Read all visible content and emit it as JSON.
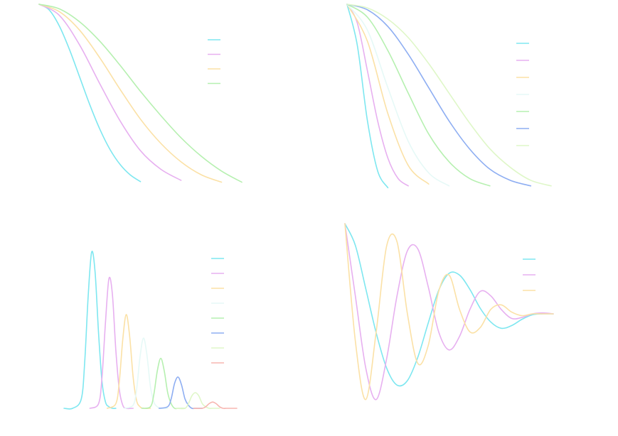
{
  "chart_data": [
    {
      "type": "line",
      "panel": "top-left",
      "grid": false,
      "legend": "top-right",
      "xlim": [
        0,
        10
      ],
      "ylim": [
        0,
        1
      ],
      "series": [
        {
          "color": "#7ee7f0",
          "x": [
            0.0,
            0.5,
            1.0,
            1.5,
            2.0,
            2.5,
            3.0,
            3.5,
            4.0,
            4.5,
            5.0
          ],
          "y": [
            1.0,
            0.969,
            0.882,
            0.755,
            0.607,
            0.458,
            0.325,
            0.216,
            0.135,
            0.079,
            0.043
          ]
        },
        {
          "color": "#e7b0f0",
          "x": [
            0.0,
            1.0,
            2.0,
            3.0,
            4.0,
            5.0,
            6.0,
            7.0
          ],
          "y": [
            1.0,
            0.94,
            0.78,
            0.57,
            0.37,
            0.21,
            0.11,
            0.05
          ]
        },
        {
          "color": "#fbe1a6",
          "x": [
            0.0,
            1.0,
            2.0,
            3.0,
            4.0,
            5.0,
            6.0,
            7.0,
            8.0,
            9.0
          ],
          "y": [
            1.0,
            0.96,
            0.86,
            0.71,
            0.54,
            0.38,
            0.25,
            0.15,
            0.08,
            0.04
          ]
        },
        {
          "color": "#b6f0b0",
          "x": [
            0.0,
            1.0,
            2.0,
            3.0,
            4.0,
            5.0,
            6.0,
            7.0,
            8.0,
            9.0,
            10.0
          ],
          "y": [
            1.0,
            0.975,
            0.905,
            0.8,
            0.67,
            0.53,
            0.4,
            0.28,
            0.18,
            0.1,
            0.04
          ]
        }
      ]
    },
    {
      "type": "line",
      "panel": "top-right",
      "grid": false,
      "legend": "top-right",
      "xlim": [
        0,
        10
      ],
      "ylim": [
        0,
        1
      ],
      "series": [
        {
          "color": "#7ee7f0",
          "x": [
            0.0,
            0.5,
            1.0,
            1.5,
            2.0
          ],
          "y": [
            1.0,
            0.78,
            0.37,
            0.1,
            0.01
          ]
        },
        {
          "color": "#e7b0f0",
          "x": [
            0.0,
            0.5,
            1.0,
            1.5,
            2.0,
            2.5,
            3.0
          ],
          "y": [
            1.0,
            0.9,
            0.64,
            0.37,
            0.17,
            0.06,
            0.02
          ]
        },
        {
          "color": "#fbe1a6",
          "x": [
            0.0,
            1.0,
            2.0,
            3.0,
            4.0
          ],
          "y": [
            1.0,
            0.8,
            0.41,
            0.13,
            0.03
          ]
        },
        {
          "color": "#e6f9f7",
          "x": [
            0.0,
            1.0,
            2.0,
            3.0,
            4.0,
            5.0
          ],
          "y": [
            1.0,
            0.86,
            0.55,
            0.26,
            0.09,
            0.02
          ]
        },
        {
          "color": "#b6f0b0",
          "x": [
            0.0,
            1.0,
            2.0,
            3.0,
            4.0,
            5.0,
            6.0,
            7.0
          ],
          "y": [
            1.0,
            0.93,
            0.75,
            0.52,
            0.3,
            0.15,
            0.06,
            0.02
          ]
        },
        {
          "color": "#8eaef2",
          "x": [
            0.0,
            1.0,
            2.0,
            3.0,
            4.0,
            5.0,
            6.0,
            7.0,
            8.0,
            9.0
          ],
          "y": [
            1.0,
            0.97,
            0.88,
            0.73,
            0.55,
            0.37,
            0.22,
            0.11,
            0.05,
            0.02
          ]
        },
        {
          "color": "#dff7c8",
          "x": [
            0.0,
            1.0,
            2.0,
            3.0,
            4.0,
            5.0,
            6.0,
            7.0,
            8.0,
            9.0,
            10.0
          ],
          "y": [
            1.0,
            0.98,
            0.92,
            0.82,
            0.68,
            0.52,
            0.36,
            0.22,
            0.12,
            0.05,
            0.02
          ]
        }
      ]
    },
    {
      "type": "line",
      "panel": "bottom-left",
      "grid": false,
      "legend": "top-right",
      "xlim": [
        0,
        10
      ],
      "ylim": [
        0,
        1
      ],
      "series": [
        {
          "color": "#7ee7f0",
          "x": [
            0.0,
            0.5,
            1.0,
            1.2,
            1.4,
            1.6,
            1.8,
            2.0,
            2.2,
            2.4,
            2.6,
            2.8,
            3.0
          ],
          "y": [
            0.0,
            0.0,
            0.06,
            0.3,
            0.72,
            1.0,
            0.87,
            0.48,
            0.17,
            0.04,
            0.01,
            0.0,
            0.0
          ]
        },
        {
          "color": "#e7b0f0",
          "x": [
            1.5,
            2.0,
            2.2,
            2.4,
            2.6,
            2.8,
            3.0,
            3.2,
            3.4,
            3.6,
            4.0
          ],
          "y": [
            0.0,
            0.03,
            0.2,
            0.55,
            0.83,
            0.73,
            0.37,
            0.12,
            0.02,
            0.0,
            0.0
          ]
        },
        {
          "color": "#fbe1a6",
          "x": [
            2.5,
            3.0,
            3.2,
            3.4,
            3.6,
            3.8,
            4.0,
            4.2,
            4.4,
            4.6,
            5.0
          ],
          "y": [
            0.0,
            0.03,
            0.17,
            0.44,
            0.6,
            0.46,
            0.2,
            0.05,
            0.01,
            0.0,
            0.0
          ]
        },
        {
          "color": "#e6f9f7",
          "x": [
            3.5,
            4.0,
            4.2,
            4.4,
            4.6,
            4.8,
            5.0,
            5.2,
            5.4,
            5.6,
            6.0
          ],
          "y": [
            0.0,
            0.02,
            0.12,
            0.33,
            0.45,
            0.34,
            0.14,
            0.04,
            0.01,
            0.0,
            0.0
          ]
        },
        {
          "color": "#b6f0b0",
          "x": [
            4.5,
            5.0,
            5.2,
            5.4,
            5.6,
            5.8,
            6.0,
            6.2,
            6.4,
            6.6,
            7.0
          ],
          "y": [
            0.0,
            0.01,
            0.09,
            0.24,
            0.32,
            0.24,
            0.1,
            0.03,
            0.0,
            0.0,
            0.0
          ]
        },
        {
          "color": "#8eaef2",
          "x": [
            5.5,
            6.0,
            6.2,
            6.4,
            6.6,
            6.8,
            7.0,
            7.2,
            7.4,
            7.6,
            8.0
          ],
          "y": [
            0.0,
            0.01,
            0.06,
            0.16,
            0.2,
            0.15,
            0.06,
            0.02,
            0.0,
            0.0,
            0.0
          ]
        },
        {
          "color": "#dff7c8",
          "x": [
            6.5,
            7.0,
            7.2,
            7.4,
            7.6,
            7.8,
            8.0,
            8.2,
            8.4,
            8.6,
            9.0
          ],
          "y": [
            0.0,
            0.0,
            0.03,
            0.08,
            0.1,
            0.08,
            0.03,
            0.01,
            0.0,
            0.0,
            0.0
          ]
        },
        {
          "color": "#f7b5b0",
          "x": [
            7.5,
            8.0,
            8.2,
            8.4,
            8.6,
            8.8,
            9.0,
            9.2,
            9.4,
            9.6,
            10.0
          ],
          "y": [
            0.0,
            0.0,
            0.01,
            0.03,
            0.04,
            0.03,
            0.01,
            0.0,
            0.0,
            0.0,
            0.0
          ]
        }
      ]
    },
    {
      "type": "line",
      "panel": "bottom-right",
      "grid": false,
      "legend": "top-right",
      "xlim": [
        0,
        10
      ],
      "ylim": [
        -1,
        1
      ],
      "series": [
        {
          "color": "#7ee7f0",
          "x": [
            0.0,
            0.5,
            1.0,
            1.5,
            2.0,
            2.5,
            3.0,
            3.5,
            4.0,
            4.5,
            5.0,
            5.5,
            6.0,
            6.5,
            7.0,
            7.5,
            8.0,
            8.5,
            9.0,
            9.5,
            10.0
          ],
          "y": [
            1.0,
            0.76,
            0.28,
            -0.21,
            -0.6,
            -0.79,
            -0.74,
            -0.48,
            -0.1,
            0.26,
            0.45,
            0.43,
            0.27,
            0.06,
            -0.09,
            -0.16,
            -0.13,
            -0.06,
            -0.01,
            0.0,
            0.0
          ]
        },
        {
          "color": "#e7b0f0",
          "x": [
            0.0,
            0.5,
            1.0,
            1.5,
            2.0,
            2.5,
            3.0,
            3.5,
            4.0,
            4.5,
            5.0,
            5.5,
            6.0,
            6.5,
            7.0,
            7.5,
            8.0,
            8.5,
            9.0,
            9.5,
            10.0
          ],
          "y": [
            1.0,
            0.2,
            -0.6,
            -0.95,
            -0.5,
            0.2,
            0.7,
            0.72,
            0.3,
            -0.2,
            -0.4,
            -0.25,
            0.05,
            0.25,
            0.2,
            0.05,
            -0.05,
            -0.04,
            0.0,
            0.01,
            0.0
          ]
        },
        {
          "color": "#fbe1a6",
          "x": [
            0.0,
            0.5,
            1.0,
            1.5,
            2.0,
            2.5,
            3.0,
            3.5,
            4.0,
            4.5,
            5.0,
            5.5,
            6.0,
            6.5,
            7.0,
            7.5,
            8.0,
            8.5,
            9.0,
            9.5,
            10.0
          ],
          "y": [
            1.0,
            -0.3,
            -0.95,
            -0.2,
            0.75,
            0.8,
            0.0,
            -0.55,
            -0.35,
            0.25,
            0.43,
            0.05,
            -0.2,
            -0.15,
            0.05,
            0.1,
            0.02,
            -0.02,
            0.0,
            0.0,
            0.0
          ]
        }
      ]
    }
  ]
}
